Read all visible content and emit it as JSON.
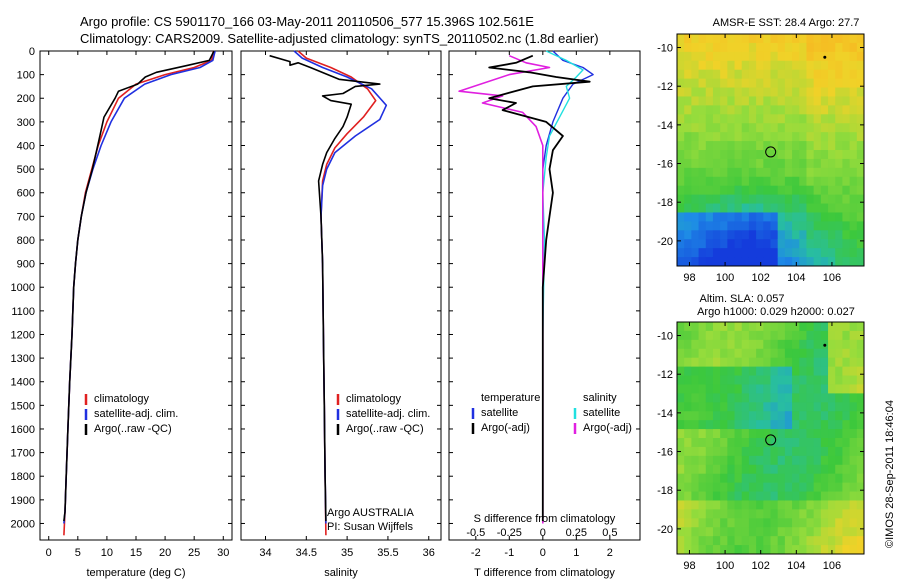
{
  "header": {
    "line1": "Argo profile: CS 5901170_166 03-May-2011 20110506_577 15.396S 102.561E",
    "line2": "Climatology: CARS2009. Satellite-adjusted climatology: synTS_20110502.nc (1.8d earlier)"
  },
  "colors": {
    "climatology": "#e02020",
    "satellite": "#2030e0",
    "argo": "#000000",
    "sat_salinity": "#20e0e0",
    "argo_salinity": "#e020e0"
  },
  "panels": {
    "temperature": {
      "xlabel": "temperature (deg C)",
      "xticks": [
        "0",
        "5",
        "10",
        "15",
        "20",
        "25",
        "30"
      ],
      "xlim": [
        -1.5,
        31.5
      ],
      "legend": [
        "climatology",
        "satellite-adj. clim.",
        "Argo(..raw -QC)"
      ]
    },
    "salinity": {
      "xlabel": "salinity",
      "xticks": [
        "34",
        "34.5",
        "35",
        "35.5",
        "36"
      ],
      "xlim": [
        33.7,
        36.15
      ],
      "legend": [
        "climatology",
        "satellite-adj. clim.",
        "Argo(..raw -QC)"
      ],
      "notes": [
        "Argo AUSTRALIA",
        "PI: Susan Wijffels"
      ]
    },
    "difference": {
      "xlabel_bottom": "T difference from climatology",
      "xlabel_top": "S difference from climatology",
      "xticks": [
        "-2",
        "-1",
        "0",
        "1",
        "2"
      ],
      "sticks": [
        "-0.5",
        "-0.25",
        "0",
        "0.25",
        "0.5"
      ],
      "xlim": [
        -2.8,
        2.9
      ],
      "legend_t_title": "temperature",
      "legend_s_title": "salinity",
      "legend_t": [
        "satellite",
        "Argo(-adj)"
      ],
      "legend_s": [
        "satellite",
        "Argo(-adj)"
      ]
    },
    "depth_ticks": [
      "0",
      "100",
      "200",
      "300",
      "400",
      "500",
      "600",
      "700",
      "800",
      "900",
      "1000",
      "1100",
      "1200",
      "1300",
      "1400",
      "1500",
      "1600",
      "1700",
      "1800",
      "1900",
      "2000"
    ],
    "ylim": [
      0,
      2070
    ]
  },
  "maps": {
    "sst_title": "AMSR-E SST: 28.4  Argo: 27.7",
    "sla_title1": "Altim. SLA: 0.057",
    "sla_title2": "Argo h1000: 0.029 h2000: 0.027",
    "lat_ticks": [
      "-10",
      "-12",
      "-14",
      "-16",
      "-18",
      "-20"
    ],
    "lon_ticks": [
      "98",
      "100",
      "102",
      "104",
      "106"
    ],
    "lon_range": [
      97.3,
      107.8
    ],
    "lat_range": [
      -9.3,
      -21.3
    ],
    "float_position": {
      "lon": 102.56,
      "lat": -15.4
    }
  },
  "credit": "©IMOS 28-Sep-2011 18:46:04",
  "chart_data": [
    {
      "type": "line",
      "title": "",
      "xlabel": "temperature (deg C)",
      "ylabel": "",
      "ylim": [
        0,
        2070
      ],
      "series": [
        {
          "name": "climatology",
          "points": [
            [
              28.3,
              0
            ],
            [
              28,
              40
            ],
            [
              25,
              70
            ],
            [
              20,
              100
            ],
            [
              15,
              140
            ],
            [
              12,
              200
            ],
            [
              10,
              300
            ],
            [
              8.5,
              400
            ],
            [
              7.4,
              500
            ],
            [
              6.3,
              600
            ],
            [
              5.6,
              700
            ],
            [
              5,
              800
            ],
            [
              4.6,
              900
            ],
            [
              4.3,
              1000
            ],
            [
              4,
              1200
            ],
            [
              3.6,
              1400
            ],
            [
              3.3,
              1600
            ],
            [
              3,
              1800
            ],
            [
              2.8,
              1950
            ],
            [
              2.6,
              2050
            ]
          ]
        },
        {
          "name": "satellite-adj. clim.",
          "points": [
            [
              28.6,
              0
            ],
            [
              28.2,
              40
            ],
            [
              26,
              70
            ],
            [
              21,
              100
            ],
            [
              16.5,
              140
            ],
            [
              13,
              200
            ],
            [
              10.7,
              300
            ],
            [
              9,
              400
            ],
            [
              7.6,
              500
            ],
            [
              6.4,
              600
            ],
            [
              5.6,
              700
            ],
            [
              5,
              800
            ],
            [
              4.6,
              900
            ],
            [
              4.3,
              1000
            ],
            [
              4,
              1200
            ],
            [
              3.6,
              1400
            ],
            [
              3.3,
              1600
            ],
            [
              3,
              1800
            ],
            [
              2.8,
              1950
            ],
            [
              2.6,
              2000
            ]
          ]
        },
        {
          "name": "Argo(..raw -QC)",
          "points": [
            [
              28.4,
              0
            ],
            [
              27.6,
              40
            ],
            [
              24,
              60
            ],
            [
              18.5,
              90
            ],
            [
              16.6,
              110
            ],
            [
              15.3,
              140
            ],
            [
              12,
              170
            ],
            [
              11.4,
              200
            ],
            [
              9.5,
              280
            ],
            [
              8.6,
              380
            ],
            [
              7.5,
              500
            ],
            [
              6.4,
              600
            ],
            [
              5.6,
              700
            ],
            [
              5,
              800
            ],
            [
              4.6,
              900
            ],
            [
              4.3,
              1000
            ],
            [
              4,
              1200
            ],
            [
              3.6,
              1400
            ],
            [
              3.3,
              1600
            ],
            [
              3,
              1800
            ],
            [
              2.8,
              1950
            ],
            [
              2.6,
              1990
            ]
          ]
        }
      ]
    },
    {
      "type": "line",
      "title": "",
      "xlabel": "salinity",
      "ylabel": "",
      "ylim": [
        0,
        2070
      ],
      "series": [
        {
          "name": "climatology",
          "points": [
            [
              34.4,
              0
            ],
            [
              34.5,
              30
            ],
            [
              34.8,
              70
            ],
            [
              35.05,
              110
            ],
            [
              35.25,
              160
            ],
            [
              35.35,
              210
            ],
            [
              35.2,
              280
            ],
            [
              35,
              350
            ],
            [
              34.85,
              410
            ],
            [
              34.75,
              480
            ],
            [
              34.7,
              550
            ],
            [
              34.68,
              700
            ],
            [
              34.7,
              900
            ],
            [
              34.71,
              1200
            ],
            [
              34.72,
              1500
            ],
            [
              34.73,
              1800
            ],
            [
              34.74,
              2050
            ]
          ]
        },
        {
          "name": "satellite-adj. clim.",
          "points": [
            [
              34.35,
              0
            ],
            [
              34.45,
              30
            ],
            [
              34.7,
              70
            ],
            [
              35,
              110
            ],
            [
              35.3,
              160
            ],
            [
              35.48,
              230
            ],
            [
              35.4,
              290
            ],
            [
              35.1,
              360
            ],
            [
              34.85,
              430
            ],
            [
              34.75,
              500
            ],
            [
              34.7,
              570
            ],
            [
              34.68,
              700
            ],
            [
              34.7,
              900
            ],
            [
              34.71,
              1200
            ],
            [
              34.72,
              1500
            ],
            [
              34.73,
              1800
            ],
            [
              34.74,
              2000
            ]
          ]
        },
        {
          "name": "Argo(..raw -QC)",
          "points": [
            [
              34.05,
              20
            ],
            [
              34.3,
              45
            ],
            [
              34.3,
              60
            ],
            [
              34.4,
              50
            ],
            [
              34.55,
              70
            ],
            [
              34.9,
              120
            ],
            [
              35.4,
              140
            ],
            [
              35.1,
              150
            ],
            [
              34.95,
              180
            ],
            [
              34.7,
              190
            ],
            [
              34.8,
              210
            ],
            [
              35.05,
              225
            ],
            [
              35,
              280
            ],
            [
              34.95,
              320
            ],
            [
              34.85,
              370
            ],
            [
              34.75,
              430
            ],
            [
              34.7,
              480
            ],
            [
              34.65,
              550
            ],
            [
              34.68,
              700
            ],
            [
              34.7,
              900
            ],
            [
              34.71,
              1200
            ],
            [
              34.72,
              1500
            ],
            [
              34.73,
              1800
            ],
            [
              34.74,
              1990
            ]
          ]
        }
      ]
    },
    {
      "type": "line",
      "title": "",
      "xlabel": "T difference from climatology",
      "ylabel": "",
      "ylim": [
        0,
        2070
      ],
      "series": [
        {
          "name": "satellite",
          "points": [
            [
              0.3,
              0
            ],
            [
              0.6,
              40
            ],
            [
              1.2,
              70
            ],
            [
              1.5,
              100
            ],
            [
              0.9,
              140
            ],
            [
              0.6,
              200
            ],
            [
              0.3,
              300
            ],
            [
              0.1,
              400
            ],
            [
              0,
              500
            ],
            [
              0,
              2000
            ]
          ]
        },
        {
          "name": "Argo(-adj)",
          "points": [
            [
              -0.3,
              20
            ],
            [
              -0.8,
              50
            ],
            [
              -1.6,
              70
            ],
            [
              -0.4,
              90
            ],
            [
              0.4,
              110
            ],
            [
              1.4,
              130
            ],
            [
              -0.3,
              150
            ],
            [
              -1.6,
              200
            ],
            [
              -0.8,
              220
            ],
            [
              -1.2,
              250
            ],
            [
              0.1,
              300
            ],
            [
              0.6,
              360
            ],
            [
              0.3,
              420
            ],
            [
              0.2,
              500
            ],
            [
              0.3,
              600
            ],
            [
              0.2,
              700
            ],
            [
              0.1,
              800
            ],
            [
              0,
              1000
            ],
            [
              0,
              1990
            ]
          ]
        },
        {
          "name": "salinity satellite",
          "points": [
            [
              0.1,
              0
            ],
            [
              0.7,
              40
            ],
            [
              1.2,
              80
            ],
            [
              1,
              110
            ],
            [
              0.7,
              150
            ],
            [
              0.8,
              200
            ],
            [
              0.5,
              280
            ],
            [
              0.2,
              360
            ],
            [
              0.1,
              450
            ],
            [
              0,
              600
            ],
            [
              0.05,
              800
            ],
            [
              0,
              1200
            ],
            [
              0,
              2000
            ]
          ]
        },
        {
          "name": "salinity Argo(-adj)",
          "points": [
            [
              -1,
              20
            ],
            [
              -0.5,
              50
            ],
            [
              0.2,
              70
            ],
            [
              -1,
              100
            ],
            [
              -2.5,
              170
            ],
            [
              -1.2,
              190
            ],
            [
              -1.8,
              220
            ],
            [
              -0.6,
              260
            ],
            [
              -0.2,
              320
            ],
            [
              0,
              400
            ],
            [
              0,
              2000
            ]
          ]
        }
      ]
    }
  ]
}
